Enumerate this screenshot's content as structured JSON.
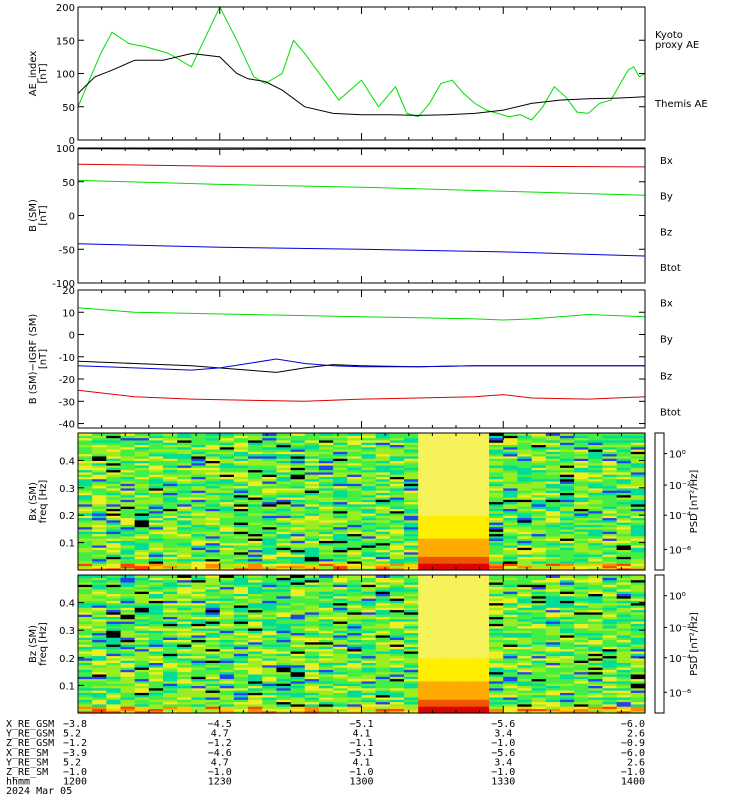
{
  "chart_data": [
    {
      "type": "line",
      "ylabel": [
        "AE_index",
        "[nT]"
      ],
      "ylim": [
        0,
        200
      ],
      "yticks": [
        0,
        50,
        100,
        150,
        200
      ],
      "grid": false,
      "series": [
        {
          "name": "Kyoto proxy AE",
          "label_lines": [
            "Kyoto",
            "proxy AE"
          ],
          "color": "#00dd00",
          "x": [
            0,
            2,
            4,
            6,
            9,
            12,
            16,
            20,
            25,
            28,
            31,
            33,
            36,
            38,
            40,
            43,
            46,
            50,
            53,
            56,
            58,
            60,
            62,
            64,
            66,
            68,
            70,
            72,
            74,
            76,
            78,
            80,
            82,
            84,
            86,
            88,
            90,
            92,
            94,
            96,
            97,
            98,
            99,
            100
          ],
          "values": [
            50,
            90,
            130,
            162,
            145,
            140,
            130,
            110,
            200,
            150,
            95,
            85,
            100,
            150,
            130,
            95,
            60,
            90,
            50,
            80,
            40,
            35,
            55,
            85,
            90,
            70,
            55,
            45,
            40,
            35,
            38,
            30,
            50,
            80,
            65,
            42,
            40,
            55,
            60,
            90,
            105,
            110,
            95,
            100
          ]
        },
        {
          "name": "Themis AE",
          "label_lines": [
            "Themis AE"
          ],
          "color": "#000000",
          "x": [
            0,
            3,
            6,
            10,
            15,
            20,
            25,
            28,
            30,
            33,
            36,
            40,
            45,
            50,
            55,
            60,
            65,
            70,
            75,
            80,
            85,
            90,
            95,
            100
          ],
          "values": [
            70,
            95,
            105,
            120,
            120,
            130,
            125,
            100,
            92,
            88,
            75,
            50,
            40,
            38,
            38,
            37,
            38,
            40,
            45,
            55,
            60,
            62,
            63,
            65
          ]
        }
      ]
    },
    {
      "type": "line",
      "ylabel": [
        "B (SM)",
        "[nT]"
      ],
      "ylim": [
        -100,
        100
      ],
      "yticks": [
        -100,
        -50,
        0,
        50,
        100
      ],
      "grid": false,
      "legend": [
        {
          "name": "Bx",
          "color": "#0000dd"
        },
        {
          "name": "By",
          "color": "#00dd00"
        },
        {
          "name": "Bz",
          "color": "#dd0000"
        },
        {
          "name": "Btot",
          "color": "#000000"
        }
      ],
      "series": [
        {
          "name": "Bx",
          "color": "#0000dd",
          "x": [
            0,
            25,
            50,
            75,
            100
          ],
          "values": [
            -42,
            -47,
            -50,
            -54,
            -60
          ]
        },
        {
          "name": "By",
          "color": "#00dd00",
          "x": [
            0,
            25,
            50,
            75,
            100
          ],
          "values": [
            52,
            46,
            42,
            36,
            30
          ]
        },
        {
          "name": "Bz",
          "color": "#dd0000",
          "x": [
            0,
            25,
            50,
            75,
            100
          ],
          "values": [
            76,
            73,
            73,
            73,
            72
          ]
        },
        {
          "name": "Btot",
          "color": "#000000",
          "x": [
            0,
            25,
            50,
            75,
            100
          ],
          "values": [
            99,
            98,
            99,
            99,
            99
          ]
        }
      ]
    },
    {
      "type": "line",
      "ylabel": [
        "B (SM)−IGRF (SM)",
        "[nT]"
      ],
      "ylim": [
        -42,
        20
      ],
      "yticks": [
        -40,
        -30,
        -20,
        -10,
        0,
        10,
        20
      ],
      "grid": false,
      "legend": [
        {
          "name": "Bx",
          "color": "#0000dd"
        },
        {
          "name": "By",
          "color": "#00dd00"
        },
        {
          "name": "Bz",
          "color": "#dd0000"
        },
        {
          "name": "Btot",
          "color": "#000000"
        }
      ],
      "series": [
        {
          "name": "By",
          "color": "#00dd00",
          "x": [
            0,
            10,
            20,
            30,
            40,
            50,
            60,
            70,
            75,
            80,
            85,
            90,
            95,
            100
          ],
          "values": [
            12,
            10,
            9.5,
            9,
            8.5,
            8,
            7.5,
            7,
            6.5,
            7,
            8,
            9,
            8.5,
            8
          ]
        },
        {
          "name": "Btot",
          "color": "#000000",
          "x": [
            0,
            10,
            20,
            30,
            35,
            40,
            45,
            50,
            60,
            70,
            80,
            90,
            100
          ],
          "values": [
            -12,
            -13,
            -14,
            -16,
            -17,
            -15,
            -13.5,
            -14,
            -14.5,
            -14,
            -14,
            -14,
            -14
          ]
        },
        {
          "name": "Bx",
          "color": "#0000dd",
          "x": [
            0,
            10,
            20,
            25,
            30,
            35,
            40,
            45,
            50,
            60,
            70,
            80,
            90,
            100
          ],
          "values": [
            -14,
            -15,
            -16,
            -15,
            -13,
            -11,
            -13,
            -14,
            -14.5,
            -14.5,
            -14,
            -14,
            -14,
            -14
          ]
        },
        {
          "name": "Bz",
          "color": "#dd0000",
          "x": [
            0,
            10,
            20,
            30,
            40,
            50,
            60,
            70,
            75,
            80,
            90,
            100
          ],
          "values": [
            -25,
            -28,
            -29,
            -29.5,
            -30,
            -29,
            -28.5,
            -28,
            -27,
            -28.5,
            -29,
            -28
          ]
        }
      ]
    },
    {
      "type": "heatmap",
      "ylabel": [
        "Bx (SM)",
        "freq [Hz]"
      ],
      "ylim": [
        0,
        0.5
      ],
      "yticks": [
        0.1,
        0.2,
        0.3,
        0.4
      ],
      "colorbar": {
        "label": "PSD [nT²/Hz]",
        "ticks": [
          "10⁰",
          "10⁻²",
          "10⁻⁴",
          "10⁻⁶"
        ]
      },
      "bright_band": {
        "x_from": 59.5,
        "x_to": 72.5
      }
    },
    {
      "type": "heatmap",
      "ylabel": [
        "Bz (SM)",
        "freq [Hz]"
      ],
      "ylim": [
        0,
        0.5
      ],
      "yticks": [
        0.1,
        0.2,
        0.3,
        0.4
      ],
      "colorbar": {
        "label": "PSD [nT²/Hz]",
        "ticks": [
          "10⁰",
          "10⁻²",
          "10⁻⁴",
          "10⁻⁶"
        ]
      },
      "bright_band": {
        "x_from": 59.5,
        "x_to": 72.5
      }
    }
  ],
  "footer": {
    "rows": [
      {
        "label": "X_RE_GSM",
        "values": [
          "−3.8",
          "−4.5",
          "−5.1",
          "−5.6",
          "−6.0"
        ]
      },
      {
        "label": "Y_RE_GSM",
        "values": [
          "5.2",
          "4.7",
          "4.1",
          "3.4",
          "2.6"
        ]
      },
      {
        "label": "Z_RE_GSM",
        "values": [
          "−1.2",
          "−1.2",
          "−1.1",
          "−1.0",
          "−0.9"
        ]
      },
      {
        "label": "X_RE_SM",
        "values": [
          "−3.9",
          "−4.6",
          "−5.1",
          "−5.6",
          "−6.0"
        ]
      },
      {
        "label": "Y_RE_SM",
        "values": [
          "5.2",
          "4.7",
          "4.1",
          "3.4",
          "2.6"
        ]
      },
      {
        "label": "Z_RE_SM",
        "values": [
          "−1.0",
          "−1.0",
          "−1.0",
          "−1.0",
          "−1.0"
        ]
      },
      {
        "label": "hhmm",
        "values": [
          "1200",
          "1230",
          "1300",
          "1330",
          "1400"
        ]
      }
    ],
    "date": "2024 Mar 05"
  },
  "colors": {
    "frame": "#000000",
    "background": "#ffffff"
  }
}
